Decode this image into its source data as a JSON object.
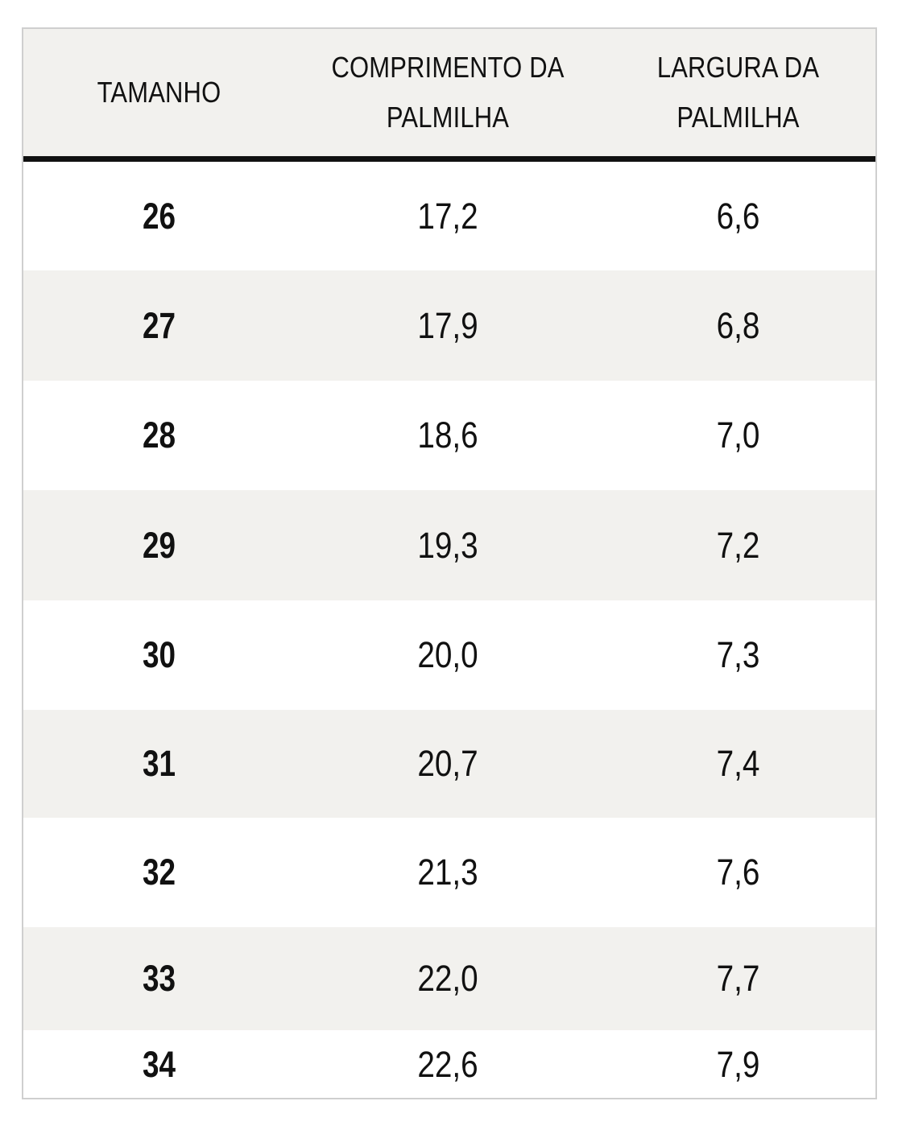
{
  "headers": {
    "size": "TAMANHO",
    "length_line1": "COMPRIMENTO DA",
    "length_line2": "PALMILHA",
    "width_line1": "LARGURA DA",
    "width_line2": "PALMILHA"
  },
  "rows": [
    {
      "size": "26",
      "length": "17,2",
      "width": "6,6"
    },
    {
      "size": "27",
      "length": "17,9",
      "width": "6,8"
    },
    {
      "size": "28",
      "length": "18,6",
      "width": "7,0"
    },
    {
      "size": "29",
      "length": "19,3",
      "width": "7,2"
    },
    {
      "size": "30",
      "length": "20,0",
      "width": "7,3"
    },
    {
      "size": "31",
      "length": "20,7",
      "width": "7,4"
    },
    {
      "size": "32",
      "length": "21,3",
      "width": "7,6"
    },
    {
      "size": "33",
      "length": "22,0",
      "width": "7,7"
    },
    {
      "size": "34",
      "length": "22,6",
      "width": "7,9"
    }
  ],
  "colors": {
    "header_background": "#f2f1ee",
    "shaded_row_background": "#f2f1ee",
    "text": "#111111",
    "divider": "#111111",
    "border": "#cfcfcf"
  }
}
